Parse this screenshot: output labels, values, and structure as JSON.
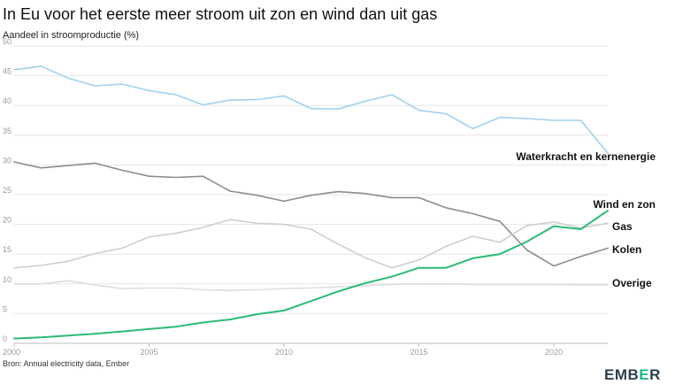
{
  "chart_data": {
    "type": "line",
    "title": "In Eu voor het eerste meer stroom uit zon en wind dan uit gas",
    "ylabel": "Aandeel in stroomproductie (%)",
    "xlabel": "",
    "x": [
      2000,
      2001,
      2002,
      2003,
      2004,
      2005,
      2006,
      2007,
      2008,
      2009,
      2010,
      2011,
      2012,
      2013,
      2014,
      2015,
      2016,
      2017,
      2018,
      2019,
      2020,
      2021,
      2022
    ],
    "xlim": [
      2000,
      2022
    ],
    "ylim": [
      0,
      50
    ],
    "x_ticks": [
      "2000",
      "2005",
      "2010",
      "2015",
      "2020"
    ],
    "x_tick_values": [
      2000,
      2005,
      2010,
      2015,
      2020
    ],
    "y_ticks": [
      "0",
      "5",
      "10",
      "15",
      "20",
      "25",
      "30",
      "35",
      "40",
      "45",
      "50"
    ],
    "y_tick_values": [
      0,
      5,
      10,
      15,
      20,
      25,
      30,
      35,
      40,
      45,
      50
    ],
    "grid": true,
    "series": [
      {
        "name": "Waterkracht en kernenergie",
        "color": "#9fd2ee",
        "values": [
          46.0,
          46.6,
          44.6,
          43.3,
          43.6,
          42.5,
          41.8,
          40.1,
          40.9,
          41.0,
          41.6,
          39.5,
          39.4,
          40.7,
          41.8,
          39.2,
          38.6,
          36.1,
          38.0,
          37.8,
          37.5,
          37.5,
          32.0
        ]
      },
      {
        "name": "Kolen",
        "color": "#8c8c8c",
        "values": [
          30.5,
          29.5,
          29.9,
          30.3,
          29.1,
          28.1,
          27.9,
          28.1,
          25.6,
          24.9,
          23.9,
          24.9,
          25.5,
          25.2,
          24.5,
          24.5,
          22.8,
          21.8,
          20.5,
          15.7,
          13.0,
          14.6,
          16.0
        ]
      },
      {
        "name": "Gas",
        "color": "#cfcfcf",
        "values": [
          12.7,
          13.1,
          13.8,
          15.1,
          16.0,
          17.9,
          18.5,
          19.5,
          20.8,
          20.2,
          20.0,
          19.2,
          16.7,
          14.4,
          12.7,
          14.0,
          16.3,
          18.0,
          17.0,
          19.8,
          20.4,
          19.4,
          20.2
        ]
      },
      {
        "name": "Overige",
        "color": "#dedede",
        "values": [
          10.0,
          10.0,
          10.5,
          9.8,
          9.2,
          9.3,
          9.3,
          9.0,
          8.9,
          9.0,
          9.2,
          9.3,
          9.5,
          9.7,
          9.9,
          10.0,
          10.0,
          9.9,
          9.9,
          9.9,
          9.9,
          9.8,
          9.8
        ]
      },
      {
        "name": "Wind en zon",
        "color": "#2bbb75",
        "values": [
          0.8,
          1.0,
          1.3,
          1.6,
          2.0,
          2.4,
          2.8,
          3.5,
          4.0,
          4.9,
          5.5,
          7.1,
          8.7,
          10.1,
          11.2,
          12.7,
          12.7,
          14.3,
          15.0,
          17.1,
          19.7,
          19.2,
          22.3
        ]
      }
    ],
    "source": "Bron: Annual electricity data, Ember"
  },
  "brand": {
    "logo_prefix": "EMB",
    "logo_accent": "E",
    "logo_suffix": "R"
  }
}
